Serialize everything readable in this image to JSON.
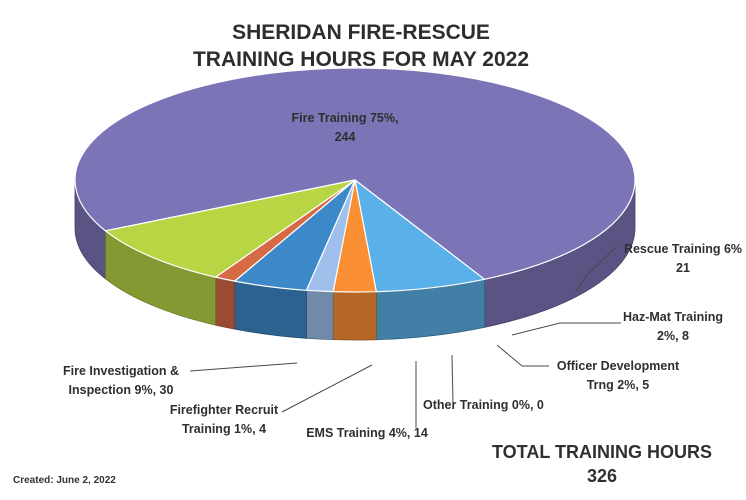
{
  "chart_data": {
    "type": "pie",
    "title": [
      "SHERIDAN FIRE-RESCUE",
      "TRAINING HOURS FOR MAY 2022"
    ],
    "slices": [
      {
        "label": "Fire Training",
        "percent": 75,
        "value": 244,
        "color": "#7b74b6"
      },
      {
        "label": "Rescue Training",
        "percent": 6,
        "value": 21,
        "color": "#5ab0e8"
      },
      {
        "label": "Haz-Mat Training",
        "percent": 2,
        "value": 8,
        "color": "#fb8f34"
      },
      {
        "label": "Officer Development Trng",
        "percent": 2,
        "value": 5,
        "color": "#9fc0ec"
      },
      {
        "label": "Other Training",
        "percent": 0,
        "value": 0,
        "color": "#c0cf54"
      },
      {
        "label": "EMS Training",
        "percent": 4,
        "value": 14,
        "color": "#3c88c8"
      },
      {
        "label": "Firefighter Recruit Training",
        "percent": 1,
        "value": 4,
        "color": "#d66a45"
      },
      {
        "label": "Fire Investigation & Inspection",
        "percent": 9,
        "value": 30,
        "color": "#b8d544"
      }
    ],
    "data_labels": [
      {
        "lines": [
          "Fire Training  75%,",
          "244"
        ]
      },
      {
        "lines": [
          "Rescue Training  6%",
          "21"
        ]
      },
      {
        "lines": [
          "Haz-Mat Training",
          "2%, 8"
        ]
      },
      {
        "lines": [
          "Officer Development",
          "Trng  2%, 5"
        ]
      },
      {
        "lines": [
          "Other Training  0%, 0"
        ]
      },
      {
        "lines": [
          "EMS Training  4%, 14"
        ]
      },
      {
        "lines": [
          "Firefighter Recruit",
          "Training  1%, 4"
        ]
      },
      {
        "lines": [
          "Fire Investigation &",
          "Inspection 9%, 30"
        ]
      }
    ],
    "total_label": "TOTAL TRAINING  HOURS",
    "total_value": "326"
  },
  "footer": {
    "created": "Created:  June 2, 2022"
  }
}
